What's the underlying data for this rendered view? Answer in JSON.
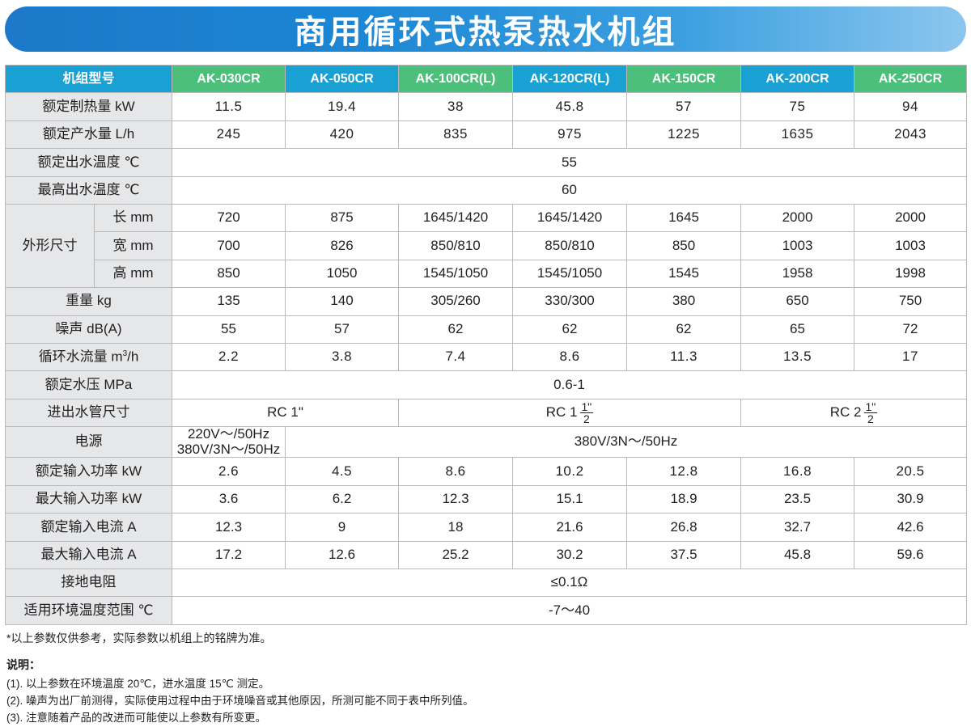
{
  "title": "商用循环式热泵热水机组",
  "header": {
    "label": "机组型号",
    "models": [
      "AK-030CR",
      "AK-050CR",
      "AK-100CR(L)",
      "AK-120CR(L)",
      "AK-150CR",
      "AK-200CR",
      "AK-250CR"
    ]
  },
  "colors": {
    "header_green": "#4cbf7a",
    "header_blue": "#1aa1d4",
    "banner_blue": "#1d78c9",
    "label_gray": "#e6e7e8"
  },
  "rows": {
    "heat": {
      "label": "额定制热量 kW",
      "values": [
        "11.5",
        "19.4",
        "38",
        "45.8",
        "57",
        "75",
        "94"
      ]
    },
    "water": {
      "label": "额定产水量 L/h",
      "values": [
        "245",
        "420",
        "835",
        "975",
        "1225",
        "1635",
        "2043"
      ]
    },
    "outtemp": {
      "label": "额定出水温度 ℃",
      "value": "55"
    },
    "maxtemp": {
      "label": "最高出水温度 ℃",
      "value": "60"
    },
    "dims": {
      "label": "外形尺寸",
      "length": {
        "label": "长 mm",
        "values": [
          "720",
          "875",
          "1645/1420",
          "1645/1420",
          "1645",
          "2000",
          "2000"
        ]
      },
      "width": {
        "label": "宽 mm",
        "values": [
          "700",
          "826",
          "850/810",
          "850/810",
          "850",
          "1003",
          "1003"
        ]
      },
      "height": {
        "label": "高 mm",
        "values": [
          "850",
          "1050",
          "1545/1050",
          "1545/1050",
          "1545",
          "1958",
          "1998"
        ]
      }
    },
    "weight": {
      "label": "重量 kg",
      "values": [
        "135",
        "140",
        "305/260",
        "330/300",
        "380",
        "650",
        "750"
      ]
    },
    "noise": {
      "label": "噪声 dB(A)",
      "values": [
        "55",
        "57",
        "62",
        "62",
        "62",
        "65",
        "72"
      ]
    },
    "flow": {
      "label_pre": "循环水流量 m",
      "label_sup": "3",
      "label_post": "/h",
      "values": [
        "2.2",
        "3.8",
        "7.4",
        "8.6",
        "11.3",
        "13.5",
        "17"
      ]
    },
    "pressure": {
      "label": "额定水压 MPa",
      "value": "0.6-1"
    },
    "pipe": {
      "label": "进出水管尺寸",
      "a": "RC 1\"",
      "b_pre": "RC 1",
      "b_num": "1\"",
      "b_den": "2",
      "c_pre": "RC 2",
      "c_num": "1\"",
      "c_den": "2"
    },
    "power": {
      "label": "电源",
      "first_line1": "220V～/50Hz",
      "first_line2": "380V/3N～/50Hz",
      "rest": "380V/3N～/50Hz"
    },
    "ratedinput": {
      "label": "额定输入功率 kW",
      "values": [
        "2.6",
        "4.5",
        "8.6",
        "10.2",
        "12.8",
        "16.8",
        "20.5"
      ]
    },
    "maxinput": {
      "label": "最大输入功率 kW",
      "values": [
        "3.6",
        "6.2",
        "12.3",
        "15.1",
        "18.9",
        "23.5",
        "30.9"
      ]
    },
    "ratedcurrent": {
      "label": "额定输入电流 A",
      "values": [
        "12.3",
        "9",
        "18",
        "21.6",
        "26.8",
        "32.7",
        "42.6"
      ]
    },
    "maxcurrent": {
      "label": "最大输入电流 A",
      "values": [
        "17.2",
        "12.6",
        "25.2",
        "30.2",
        "37.5",
        "45.8",
        "59.6"
      ]
    },
    "ground": {
      "label": "接地电阻",
      "value": "≤0.1Ω"
    },
    "ambient": {
      "label": "适用环境温度范围 ℃",
      "value": "-7～40"
    }
  },
  "footnote": "*以上参数仅供参考，实际参数以机组上的铭牌为准。",
  "notes": {
    "title": "说明：",
    "items": [
      "(1). 以上参数在环境温度 20℃，进水温度 15℃ 测定。",
      "(2). 噪声为出厂前测得，实际使用过程中由于环境噪音或其他原因，所测可能不同于表中所列值。",
      "(3). 注意随着产品的改进而可能使以上参数有所变更。"
    ]
  }
}
